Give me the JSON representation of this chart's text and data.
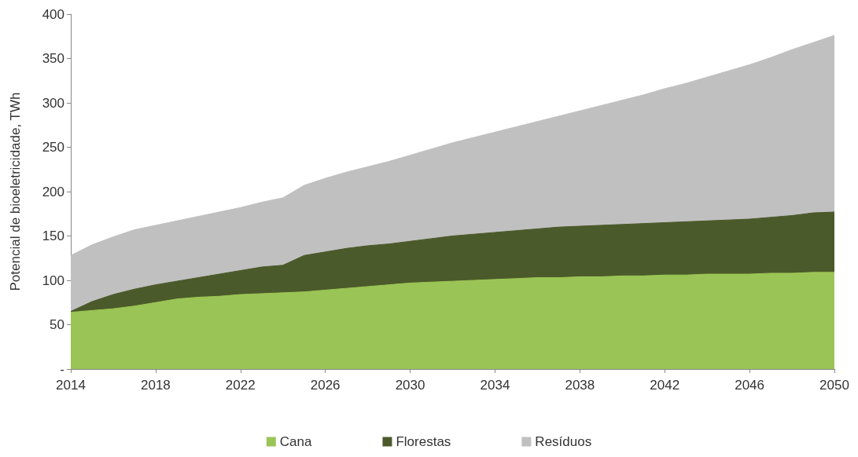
{
  "chart_data": {
    "type": "area",
    "stacked": true,
    "ylabel": "Potencial de bioeletricidade, TWh",
    "x": [
      2014,
      2015,
      2016,
      2017,
      2018,
      2019,
      2020,
      2021,
      2022,
      2023,
      2024,
      2025,
      2026,
      2027,
      2028,
      2029,
      2030,
      2031,
      2032,
      2033,
      2034,
      2035,
      2036,
      2037,
      2038,
      2039,
      2040,
      2041,
      2042,
      2043,
      2044,
      2045,
      2046,
      2047,
      2048,
      2049,
      2050
    ],
    "series": [
      {
        "name": "Cana",
        "color": "#9bc456",
        "values": [
          64,
          66,
          68,
          71,
          75,
          79,
          81,
          82,
          84,
          85,
          86,
          87,
          89,
          91,
          93,
          95,
          97,
          98,
          99,
          100,
          101,
          102,
          103,
          103,
          104,
          104,
          105,
          105,
          106,
          106,
          107,
          107,
          107,
          108,
          108,
          109,
          109
        ]
      },
      {
        "name": "Florestas",
        "color": "#4b5a2a",
        "values": [
          1,
          10,
          16,
          19,
          20,
          20,
          22,
          25,
          27,
          30,
          31,
          41,
          43,
          45,
          46,
          46,
          47,
          49,
          51,
          52,
          53,
          54,
          55,
          57,
          57,
          58,
          58,
          59,
          59,
          60,
          60,
          61,
          62,
          63,
          65,
          67,
          68
        ]
      },
      {
        "name": "Resíduos",
        "color": "#c0c0c0",
        "values": [
          63,
          64,
          65,
          67,
          67,
          68,
          69,
          70,
          71,
          73,
          76,
          79,
          83,
          86,
          89,
          93,
          97,
          101,
          105,
          109,
          113,
          117,
          121,
          125,
          130,
          135,
          140,
          145,
          151,
          156,
          162,
          168,
          174,
          180,
          187,
          192,
          199
        ]
      }
    ],
    "xlim": [
      2014,
      2050
    ],
    "xticks": [
      2014,
      2018,
      2022,
      2026,
      2030,
      2034,
      2038,
      2042,
      2046,
      2050
    ],
    "ylim": [
      0,
      400
    ],
    "yticks": [
      {
        "value": 0,
        "label": "-"
      },
      50,
      100,
      150,
      200,
      250,
      300,
      350,
      400
    ],
    "grid": false,
    "legend": "bottom",
    "marker": "none"
  }
}
